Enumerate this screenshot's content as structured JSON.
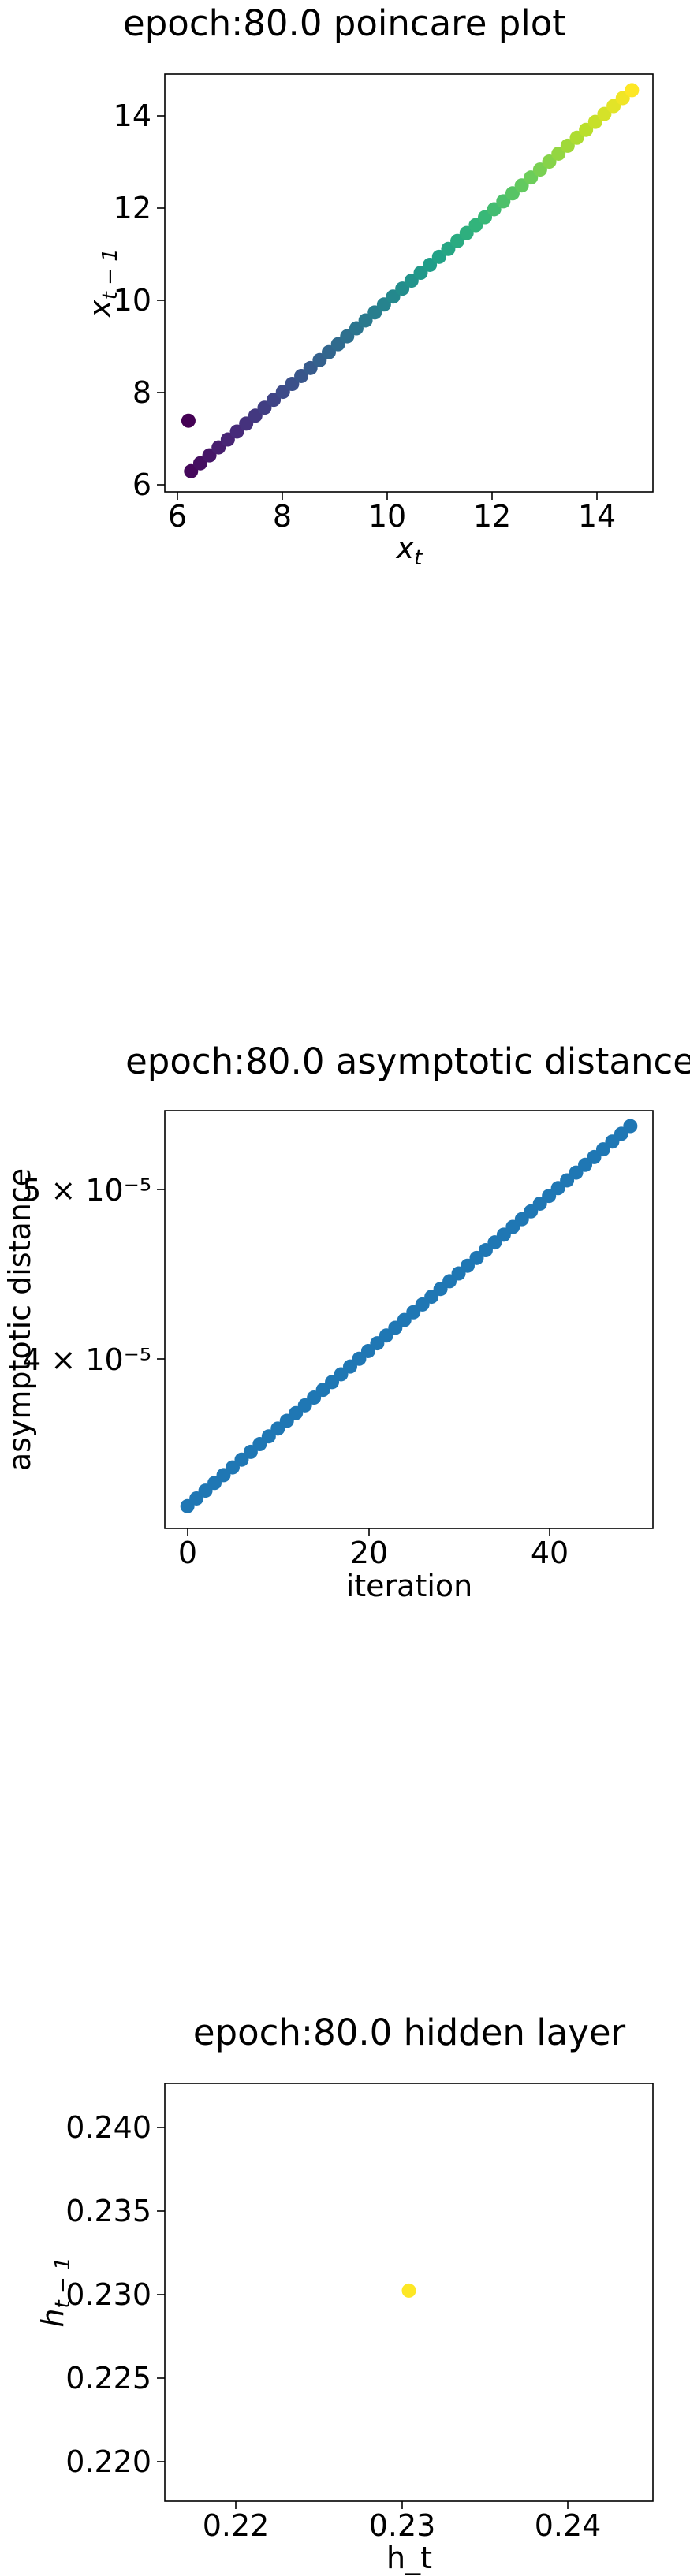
{
  "chart_data": [
    {
      "type": "scatter",
      "title": "epoch:80.0 poincare plot",
      "xlabel": "x_t",
      "ylabel": "x_{t-1}",
      "xlim": [
        5.8,
        15.1
      ],
      "ylim": [
        5.75,
        14.85
      ],
      "xticks": [
        "6",
        "8",
        "10",
        "12",
        "14"
      ],
      "yticks": [
        "6",
        "8",
        "10",
        "12",
        "14"
      ],
      "colormap": "viridis",
      "grid": false,
      "outlier": {
        "x": 6.25,
        "y": 7.3
      },
      "line": {
        "x_start": 6.3,
        "y_start": 6.2,
        "x_end": 14.7,
        "y_end": 14.5,
        "count": 50
      }
    },
    {
      "type": "scatter",
      "title": "epoch:80.0 asymptotic distance",
      "xlabel": "iteration",
      "ylabel": "asymptotic distance",
      "xlim": [
        -2.5,
        51.5
      ],
      "ylim": [
        3.22e-05,
        5.72e-05
      ],
      "yscale": "log",
      "xticks": [
        "0",
        "20",
        "40"
      ],
      "yticks": [
        "4 × 10⁻⁵",
        "5 × 10⁻⁵"
      ],
      "color": "#1f77b4",
      "grid": false,
      "series": {
        "x_start": 0,
        "x_end": 49,
        "y_start": 3.32e-05,
        "y_end": 5.6e-05,
        "count": 50
      }
    },
    {
      "type": "scatter",
      "title": "epoch:80.0 hidden layer",
      "xlabel": "h_t",
      "ylabel": "h_{t-1}",
      "xlim": [
        0.2171,
        0.2417
      ],
      "ylim": [
        0.2168,
        0.2418
      ],
      "xticks": [
        "0.22",
        "0.23",
        "0.24"
      ],
      "yticks": [
        "0.220",
        "0.225",
        "0.230",
        "0.235",
        "0.240"
      ],
      "color": "#fde725",
      "grid": false,
      "points": [
        {
          "x": 0.2294,
          "y": 0.2294
        }
      ]
    }
  ]
}
